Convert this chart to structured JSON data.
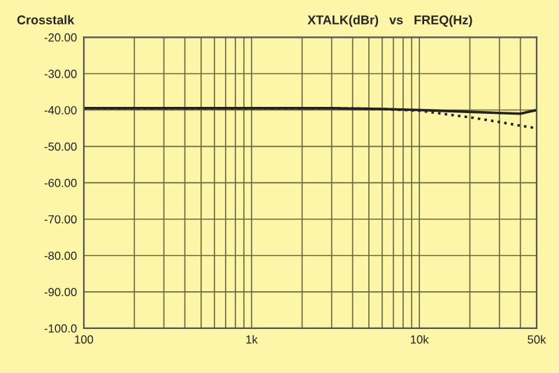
{
  "chart_data": {
    "type": "line",
    "title": "Crosstalk",
    "subtitle": "XTALK(dBr)   vs   FREQ(Hz)",
    "log": "x",
    "grid": true,
    "legend": false,
    "marker": "none",
    "xlim": [
      100,
      50000
    ],
    "ylim": [
      -100,
      -20
    ],
    "xticks": [
      {
        "value": 100,
        "label": "100"
      },
      {
        "value": 200,
        "label": null
      },
      {
        "value": 300,
        "label": null
      },
      {
        "value": 400,
        "label": null
      },
      {
        "value": 500,
        "label": null
      },
      {
        "value": 600,
        "label": null
      },
      {
        "value": 700,
        "label": null
      },
      {
        "value": 800,
        "label": null
      },
      {
        "value": 900,
        "label": null
      },
      {
        "value": 1000,
        "label": "1k"
      },
      {
        "value": 2000,
        "label": null
      },
      {
        "value": 3000,
        "label": null
      },
      {
        "value": 4000,
        "label": null
      },
      {
        "value": 5000,
        "label": null
      },
      {
        "value": 6000,
        "label": null
      },
      {
        "value": 7000,
        "label": null
      },
      {
        "value": 8000,
        "label": null
      },
      {
        "value": 9000,
        "label": null
      },
      {
        "value": 10000,
        "label": "10k"
      },
      {
        "value": 20000,
        "label": null
      },
      {
        "value": 30000,
        "label": null
      },
      {
        "value": 40000,
        "label": null
      },
      {
        "value": 50000,
        "label": "50k"
      }
    ],
    "yticks": [
      {
        "value": -20,
        "label": "-20.00"
      },
      {
        "value": -30,
        "label": "-30.00"
      },
      {
        "value": -40,
        "label": "-40.00"
      },
      {
        "value": -50,
        "label": "-50.00"
      },
      {
        "value": -60,
        "label": "-60.00"
      },
      {
        "value": -70,
        "label": "-70.00"
      },
      {
        "value": -80,
        "label": "-80.00"
      },
      {
        "value": -90,
        "label": "-90.00"
      },
      {
        "value": -100,
        "label": "-100.0"
      }
    ],
    "series": [
      {
        "color": "#222222",
        "line_style": "solid",
        "x": [
          100,
          300,
          1000,
          3000,
          6000,
          10000,
          20000,
          30000,
          40000,
          50000
        ],
        "values": [
          -39.5,
          -39.5,
          -39.5,
          -39.5,
          -39.7,
          -40,
          -40.5,
          -40.8,
          -41,
          -40
        ]
      },
      {
        "color": "#222222",
        "line_style": "dotted",
        "x": [
          100,
          300,
          1000,
          3000,
          6000,
          10000,
          20000,
          30000,
          40000,
          50000
        ],
        "values": [
          -39.5,
          -39.5,
          -39.5,
          -39.5,
          -39.7,
          -40.2,
          -42,
          -43.3,
          -44.3,
          -45
        ]
      }
    ]
  }
}
